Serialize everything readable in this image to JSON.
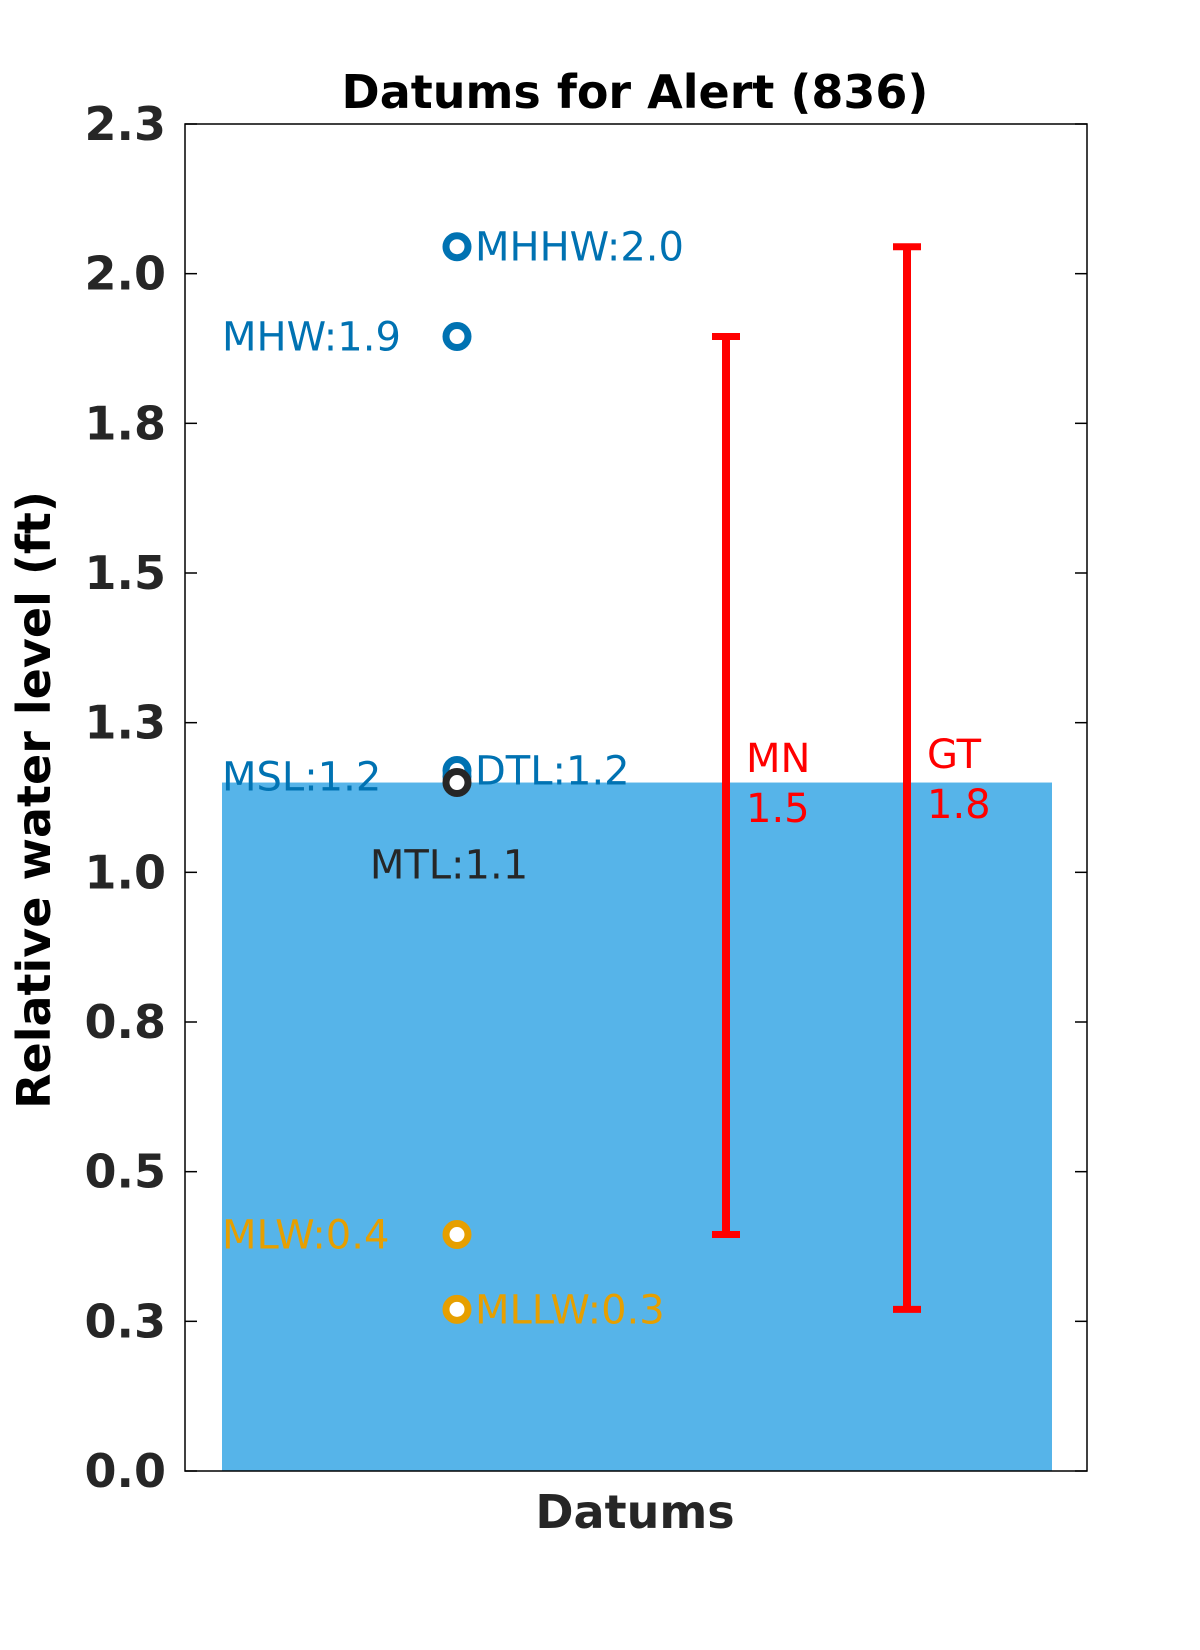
{
  "chart_data": {
    "type": "bar",
    "title": "Datums for Alert (836)",
    "xlabel": "Datums",
    "ylabel": "Relative water level (ft)",
    "ylim": [
      0,
      2.25
    ],
    "yticks": [
      0.0,
      0.25,
      0.5,
      0.75,
      1.0,
      1.25,
      1.5,
      1.75,
      2.0,
      2.25
    ],
    "ytick_labels": [
      "0.0",
      "0.3",
      "0.5",
      "0.8",
      "1.0",
      "1.3",
      "1.5",
      "1.8",
      "2.0",
      "2.3"
    ],
    "grid": false,
    "bar": {
      "value": 1.15,
      "color": "#56B4E9"
    },
    "datums": [
      {
        "name": "MHHW",
        "label": "MHHW:2.0",
        "value": 2.045,
        "color": "#0072B2",
        "label_side": "right",
        "marker": true
      },
      {
        "name": "MHW",
        "label": "MHW:1.9",
        "value": 1.895,
        "color": "#0072B2",
        "label_side": "left",
        "marker": true
      },
      {
        "name": "MSL",
        "label": "MSL:1.2",
        "value": 1.16,
        "color": "#0072B2",
        "label_side": "left",
        "marker": true
      },
      {
        "name": "DTL",
        "label": "DTL:1.2",
        "value": 1.17,
        "color": "#0072B2",
        "label_side": "right",
        "marker": true
      },
      {
        "name": "MTL",
        "label": "MTL:1.1",
        "value": 1.15,
        "color": "#262626",
        "label_side": "below",
        "marker": true
      },
      {
        "name": "MLW",
        "label": "MLW:0.4",
        "value": 0.395,
        "color": "#E69F00",
        "label_side": "left",
        "marker": true
      },
      {
        "name": "MLLW",
        "label": "MLLW:0.3",
        "value": 0.27,
        "color": "#E69F00",
        "label_side": "right",
        "marker": true
      }
    ],
    "ranges": [
      {
        "name": "MN",
        "label_line1": "MN",
        "label_line2": "1.5",
        "low": 0.395,
        "high": 1.895,
        "color": "#FF0000"
      },
      {
        "name": "GT",
        "label_line1": "GT",
        "label_line2": "1.8",
        "low": 0.27,
        "high": 2.045,
        "color": "#FF0000"
      }
    ]
  }
}
